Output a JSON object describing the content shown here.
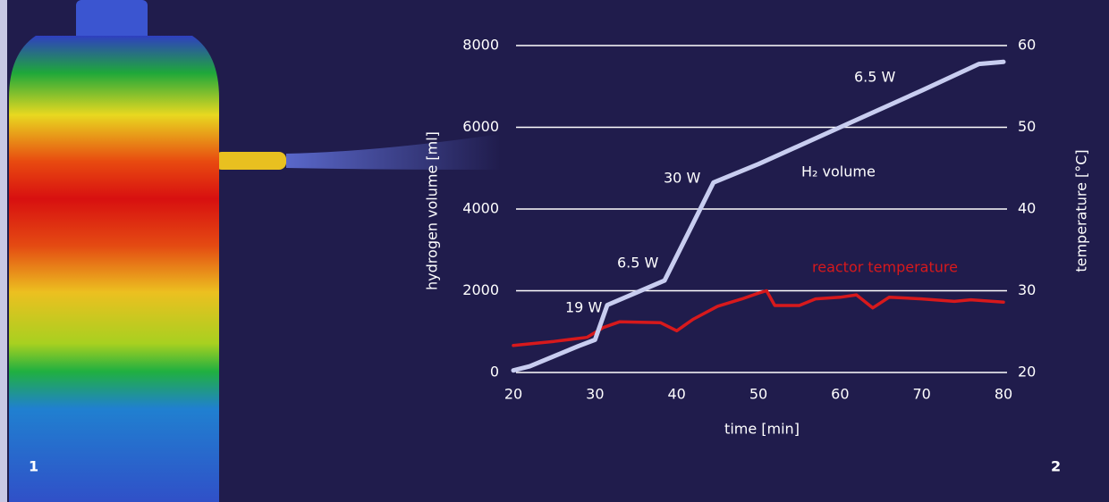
{
  "chart_data": {
    "type": "line",
    "x_label": "time [min]",
    "y_label": "hydrogen volume [ml]",
    "y2_label": "temperature [°C]",
    "xlim": [
      20,
      80
    ],
    "xticks": [
      20,
      30,
      40,
      50,
      60,
      70,
      80
    ],
    "ylim": [
      0,
      8000
    ],
    "yticks": [
      0,
      2000,
      4000,
      6000,
      8000
    ],
    "y2lim": [
      20,
      60
    ],
    "y2ticks": [
      20,
      30,
      40,
      50,
      60
    ],
    "grid": true,
    "series": [
      {
        "name": "H₂ volume",
        "color": "#c8cdf0",
        "x": [
          20,
          22,
          25,
          28,
          30,
          31.5,
          35,
          38.5,
          44.5,
          50,
          60,
          70,
          77,
          80
        ],
        "values": [
          50,
          150,
          400,
          650,
          800,
          1650,
          1950,
          2250,
          4650,
          5100,
          6000,
          6900,
          7550,
          7600
        ]
      },
      {
        "name": "reactor temperature",
        "color": "#d7191c",
        "axis": "y2",
        "x": [
          20,
          25,
          29,
          31,
          33,
          38,
          40,
          42,
          45,
          48,
          50,
          51,
          52,
          55,
          57,
          60,
          62,
          64,
          66,
          70,
          74,
          76,
          80
        ],
        "values": [
          23.3,
          23.8,
          24.3,
          25.5,
          26.2,
          26.1,
          25.1,
          26.5,
          28.1,
          29,
          29.7,
          30,
          28.2,
          28.2,
          29,
          29.2,
          29.5,
          27.9,
          29.2,
          29,
          28.7,
          28.9,
          28.6
        ]
      }
    ],
    "annotations": [
      "19 W",
      "6.5 W",
      "30 W",
      "6.5 W"
    ]
  },
  "panel_labels": [
    "1",
    "2"
  ]
}
